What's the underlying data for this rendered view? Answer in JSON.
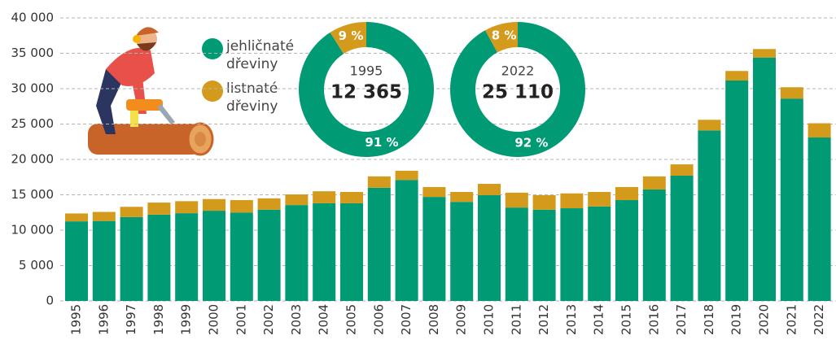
{
  "chart_data": [
    {
      "type": "bar",
      "stacked": true,
      "categories": [
        "1995",
        "1996",
        "1997",
        "1998",
        "1999",
        "2000",
        "2001",
        "2002",
        "2003",
        "2004",
        "2005",
        "2006",
        "2007",
        "2008",
        "2009",
        "2010",
        "2011",
        "2012",
        "2013",
        "2014",
        "2015",
        "2016",
        "2017",
        "2018",
        "2019",
        "2020",
        "2021",
        "2022"
      ],
      "series": [
        {
          "name": "jehličnaté dřeviny",
          "color": "#009a74",
          "values": [
            11250,
            11300,
            11850,
            12200,
            12400,
            12750,
            12500,
            12900,
            13550,
            13800,
            13800,
            16000,
            17100,
            14700,
            14000,
            14950,
            13200,
            12900,
            13100,
            13350,
            14250,
            15750,
            17700,
            24100,
            31150,
            34400,
            28600,
            23100
          ]
        },
        {
          "name": "listnaté dřeviny",
          "color": "#d49a1b",
          "values": [
            1115,
            1280,
            1450,
            1700,
            1700,
            1650,
            1750,
            1600,
            1500,
            1700,
            1600,
            1600,
            1300,
            1400,
            1400,
            1600,
            2100,
            2050,
            2100,
            2050,
            1850,
            1850,
            1600,
            1500,
            1350,
            1200,
            1600,
            2010
          ]
        }
      ],
      "ylim": [
        0,
        40000
      ],
      "yticks": [
        0,
        {
          "value": 5000,
          "label": "5 000"
        },
        {
          "value": 10000,
          "label": "10 000"
        },
        {
          "value": 15000,
          "label": "15 000"
        },
        {
          "value": 20000,
          "label": "20 000"
        },
        {
          "value": 25000,
          "label": "25 000"
        },
        {
          "value": 30000,
          "label": "30 000"
        },
        {
          "value": 35000,
          "label": "35 000"
        },
        {
          "value": 40000,
          "label": "40 000"
        }
      ],
      "grid": true
    },
    {
      "type": "pie",
      "donut": true,
      "title": "1995",
      "total": 12365,
      "total_label": "12 365",
      "values": [
        91,
        9
      ],
      "value_labels": [
        "91 %",
        "9 %"
      ],
      "colors": [
        "#009a74",
        "#d49a1b"
      ]
    },
    {
      "type": "pie",
      "donut": true,
      "title": "2022",
      "total": 25110,
      "total_label": "25 110",
      "values": [
        92,
        8
      ],
      "value_labels": [
        "92 %",
        "8 %"
      ],
      "colors": [
        "#009a74",
        "#d49a1b"
      ]
    }
  ]
}
